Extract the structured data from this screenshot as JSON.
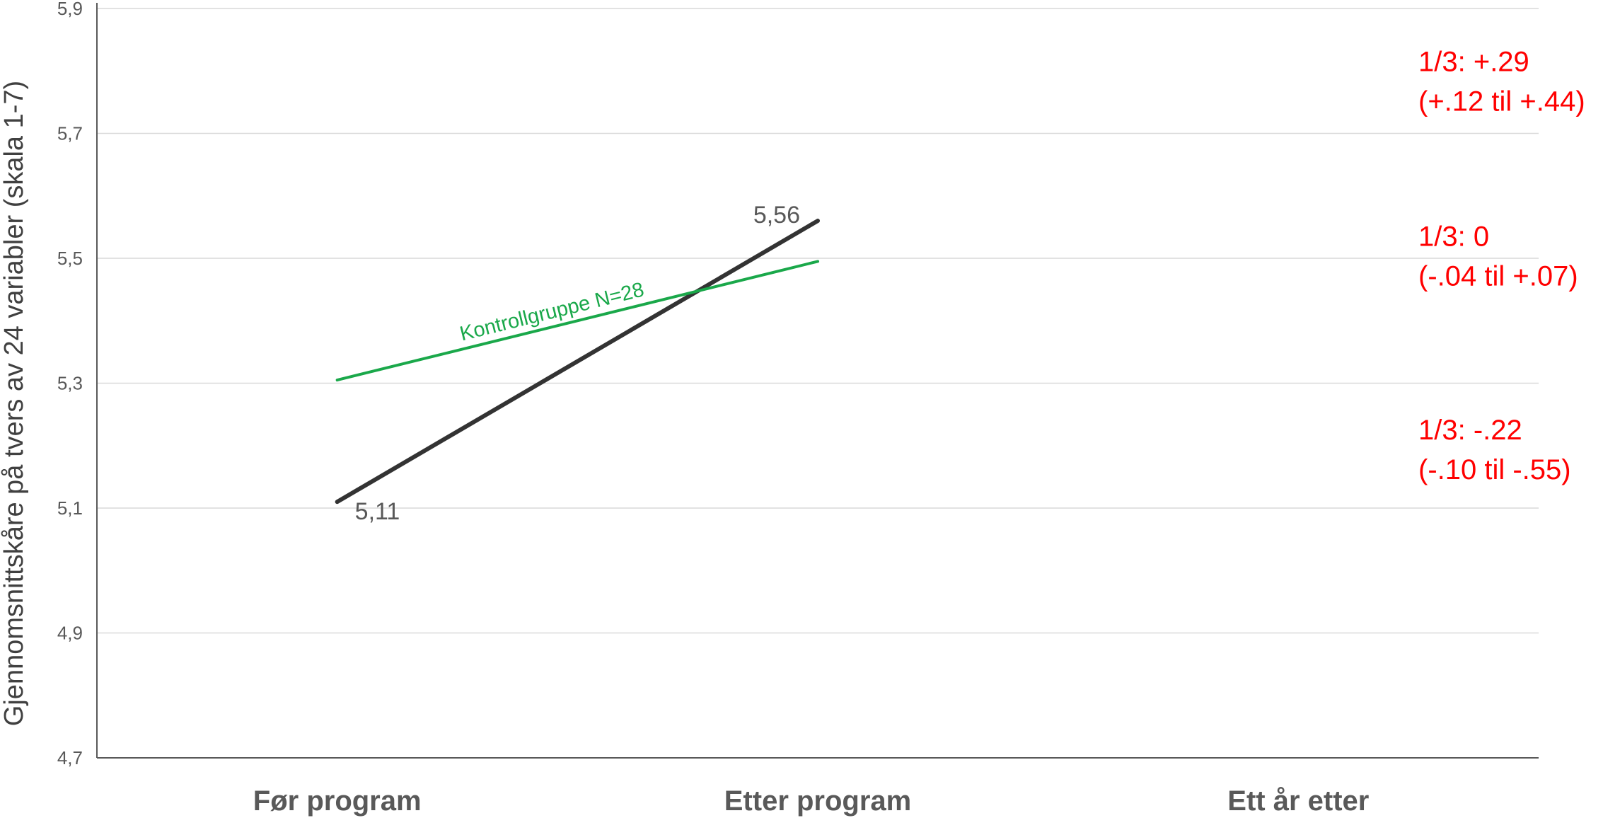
{
  "colors": {
    "axis": "#595959",
    "grid": "#d9d9d9",
    "main_series": "#333333",
    "control_series": "#1aa84a",
    "annotation": "#ff0000"
  },
  "chart_data": {
    "type": "line",
    "categories": [
      "Før program",
      "Etter program",
      "Ett år etter"
    ],
    "ylabel": "Gjennomsnittskåre på tvers av 24 variabler (skala 1-7)",
    "ylim": [
      4.7,
      5.9
    ],
    "yticks": [
      4.7,
      4.9,
      5.1,
      5.3,
      5.5,
      5.7,
      5.9
    ],
    "ytick_labels": [
      "4,7",
      "4,9",
      "5,1",
      "5,3",
      "5,5",
      "5,7",
      "5,9"
    ],
    "grid": true,
    "series": [
      {
        "values": [
          5.11,
          5.56,
          null
        ],
        "data_labels": [
          "5,11",
          "5,56",
          ""
        ]
      },
      {
        "name": "Kontrollgruppe N=28",
        "values": [
          5.305,
          5.495,
          null
        ]
      }
    ],
    "annotations": [
      {
        "lines": [
          "1/3: +.29",
          "(+.12 til +.44)"
        ],
        "y": 5.8
      },
      {
        "lines": [
          "1/3: 0",
          "(-.04 til +.07)"
        ],
        "y": 5.52
      },
      {
        "lines": [
          "1/3: -.22",
          "(-.10 til -.55)"
        ],
        "y": 5.21
      }
    ]
  }
}
